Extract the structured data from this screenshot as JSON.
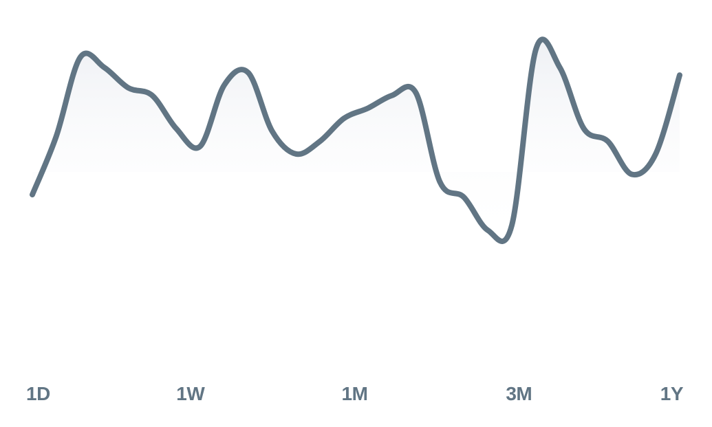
{
  "colors": {
    "line": "#617584",
    "fill_top": "#eef0f4",
    "background": "#ffffff"
  },
  "chart_data": {
    "type": "area",
    "title": "",
    "xlabel": "",
    "ylabel": "",
    "grid": false,
    "legend": "none",
    "x_tick_labels": [
      "1D",
      "1W",
      "1M",
      "3M",
      "1Y"
    ],
    "ylim": [
      0,
      100
    ],
    "series": [
      {
        "values": [
          37,
          60,
          91,
          87,
          79,
          76,
          63,
          56,
          80,
          85,
          62,
          53,
          58,
          67,
          71,
          76,
          77,
          42,
          36,
          23,
          25,
          94,
          87,
          63,
          58,
          45,
          53,
          84
        ]
      }
    ]
  }
}
